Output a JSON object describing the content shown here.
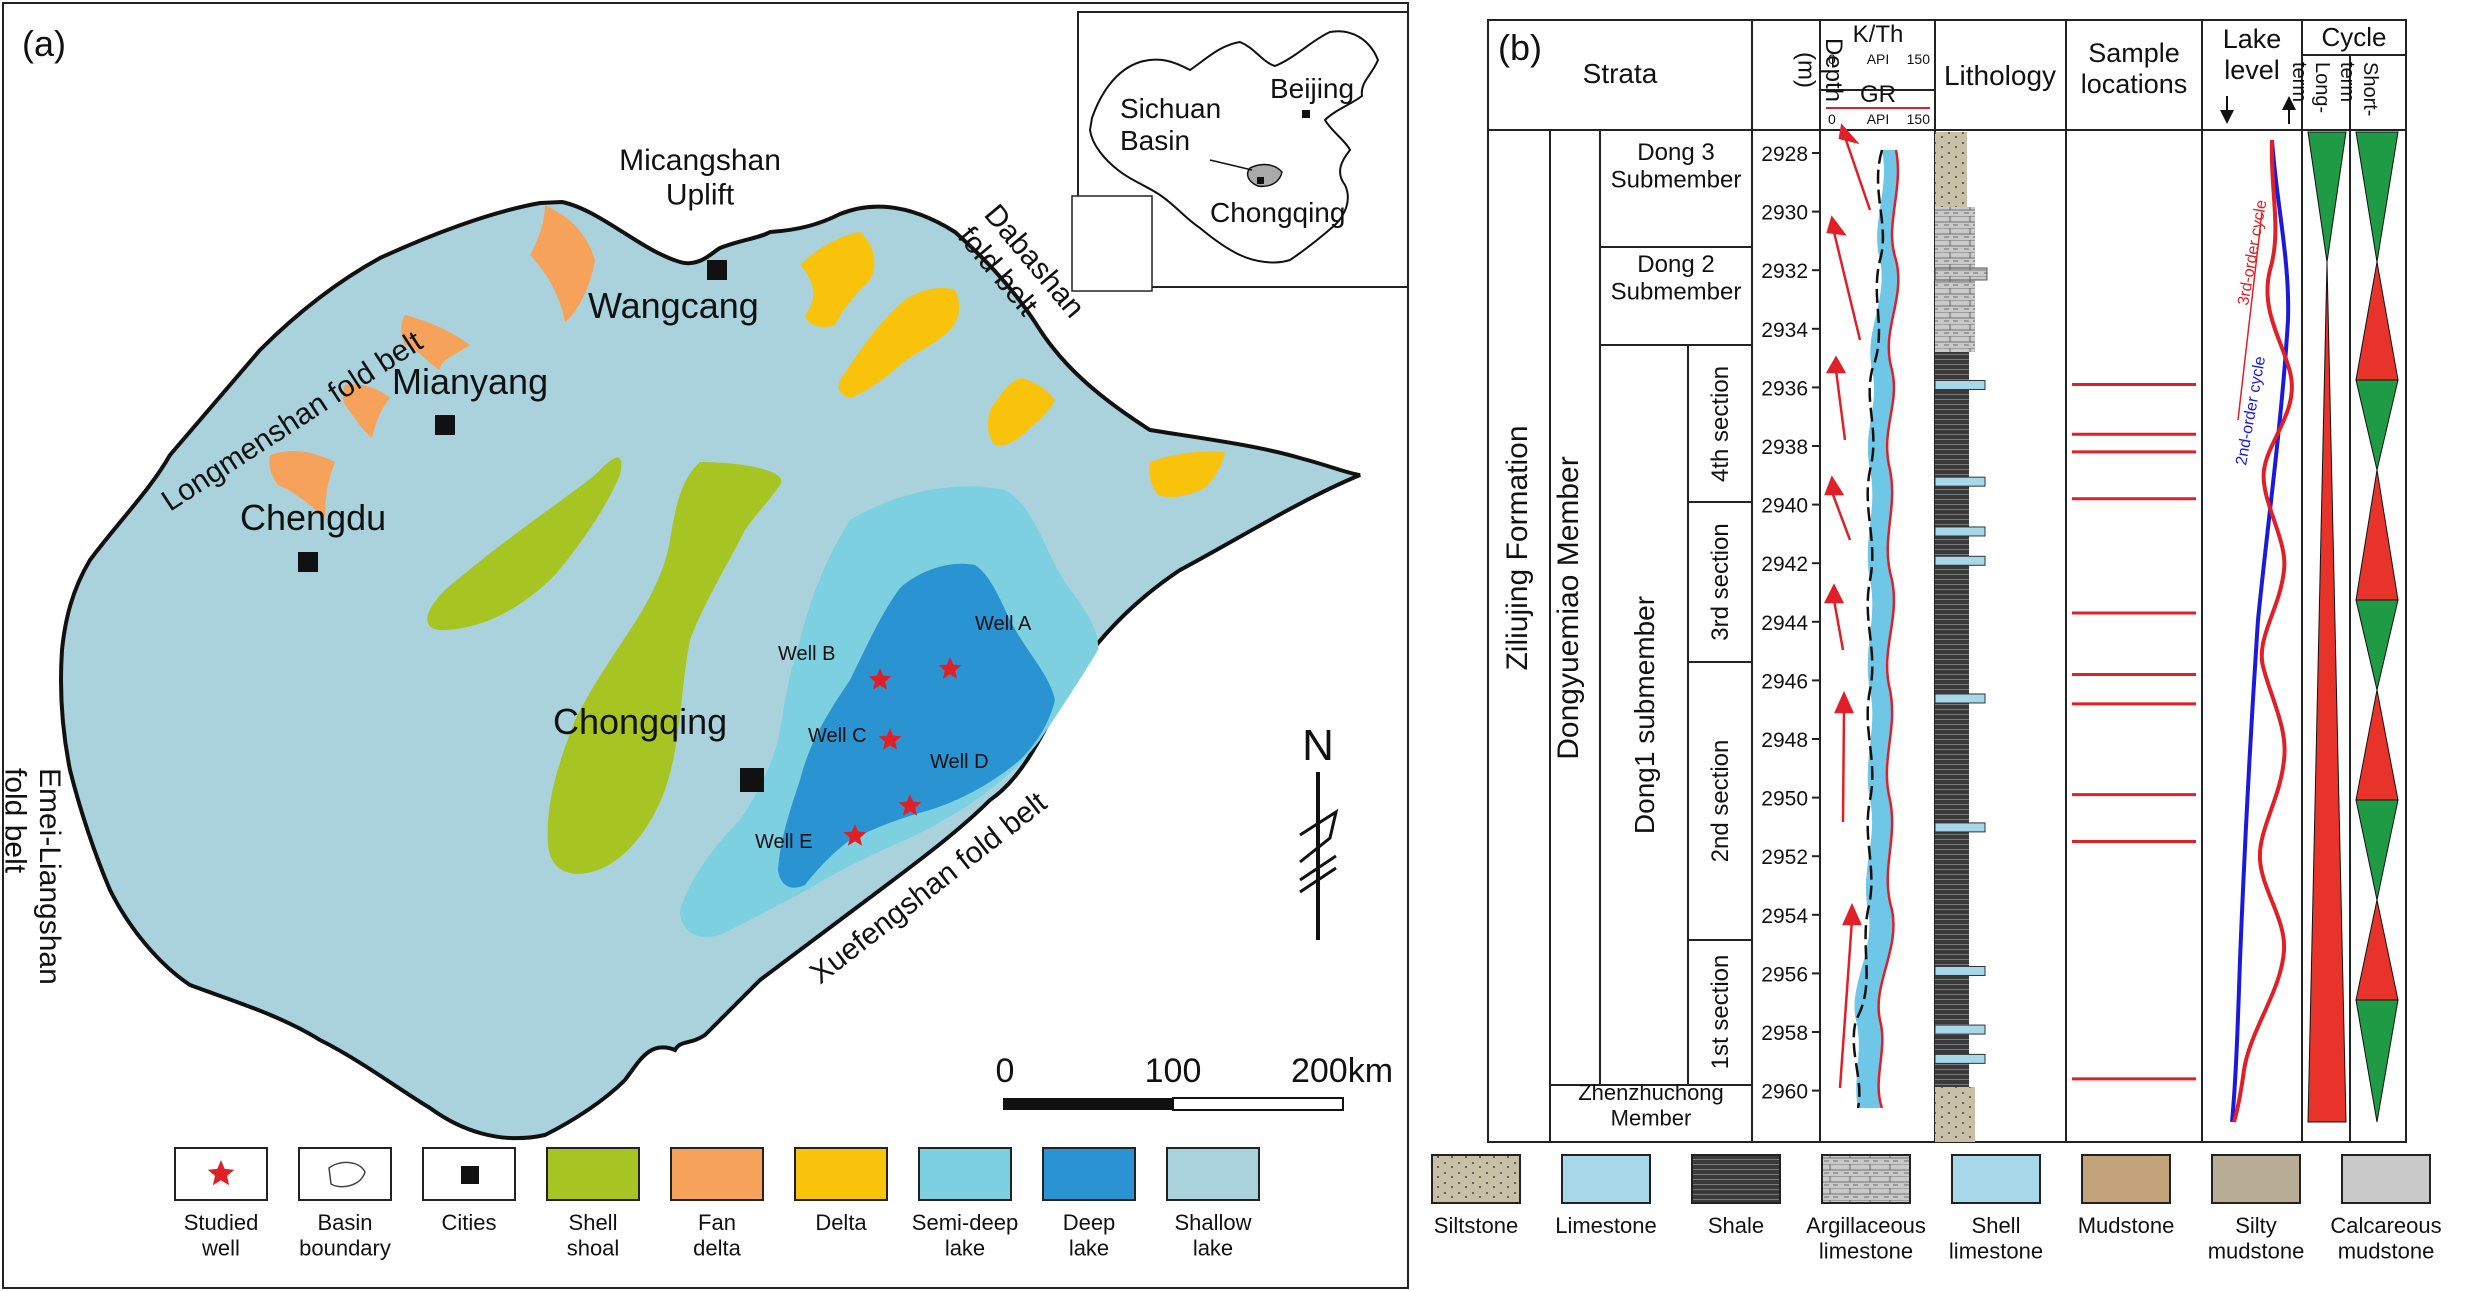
{
  "panel_a": {
    "label": "(a)",
    "places": {
      "micangshan": "Micangshan\nUplift",
      "longmenshan": "Longmenshan fold belt",
      "dabashan": "Dabashan\nfold belt",
      "wangcang": "Wangcang",
      "mianyang": "Mianyang",
      "chengdu": "Chengdu",
      "chongqing": "Chongqing",
      "xuefengshan": "Xuefengshan fold belt",
      "emei": "Emei-Liangshan\nfold belt",
      "north": "N"
    },
    "wells": [
      "Well A",
      "Well B",
      "Well C",
      "Well D",
      "Well E"
    ],
    "inset": {
      "beijing": "Beijing",
      "sichuan": "Sichuan\nBasin",
      "chongqing": "Chongqing"
    },
    "scale": {
      "labels": [
        "0",
        "100",
        "200km"
      ]
    },
    "legend": [
      {
        "label": "Studied\nwell",
        "type": "star",
        "color": "#e11f26"
      },
      {
        "label": "Basin\nboundary",
        "type": "outline",
        "color": "#ffffff"
      },
      {
        "label": "Cities",
        "type": "square",
        "color": "#111111"
      },
      {
        "label": "Shell\nshoal",
        "type": "fill",
        "color": "#a6c523"
      },
      {
        "label": "Fan\ndelta",
        "type": "fill",
        "color": "#f6a25a"
      },
      {
        "label": "Delta",
        "type": "fill",
        "color": "#f9c20b"
      },
      {
        "label": "Semi-deep\nlake",
        "type": "fill",
        "color": "#7dd0df"
      },
      {
        "label": "Deep\nlake",
        "type": "fill",
        "color": "#2a94d2"
      },
      {
        "label": "Shallow\nlake",
        "type": "fill",
        "color": "#a9d2dc"
      }
    ]
  },
  "panel_b": {
    "label": "(b)",
    "headers": {
      "strata": "Strata",
      "depth": "Depth\n(m)",
      "kth": "K/Th",
      "kth_scale": [
        "0",
        "API",
        "150"
      ],
      "gr": "GR",
      "gr_scale": [
        "0",
        "API",
        "150"
      ],
      "lithology": "Lithology",
      "samples": "Sample\nlocations",
      "lake_level": "Lake\nlevel",
      "cycle": "Cycle",
      "long_term": "Long-\nterm",
      "short_term": "Short-\nterm"
    },
    "strata": {
      "formation": "Ziliujing   Formation",
      "member": "Dongyuemiao   Member",
      "dong3": "Dong 3\nSubmember",
      "dong2": "Dong 2\nSubmember",
      "dong1": "Dong1  submember",
      "sec4": "4th section",
      "sec3": "3rd section",
      "sec2": "2nd  section",
      "sec1": "1st section",
      "zhenzhuchong": "Zhenzhuchong\nMember"
    },
    "depth_ticks": [
      2928,
      2930,
      2932,
      2934,
      2936,
      2938,
      2940,
      2942,
      2944,
      2946,
      2948,
      2950,
      2952,
      2954,
      2956,
      2958,
      2960
    ],
    "sample_depths": [
      2935.9,
      2937.6,
      2938.2,
      2939.8,
      2943.7,
      2945.8,
      2946.8,
      2949.9,
      2951.5,
      2959.6
    ],
    "curve_labels": {
      "third_order": "3rd-order cycle",
      "second_order": "2nd-order cycle"
    },
    "lithology_legend": [
      "Siltstone",
      "Limestone",
      "Shale",
      "Argillaceous\nlimestone",
      "Shell\nlimestone",
      "Mudstone",
      "Silty\nmudstone",
      "Calcareous\nmudstone"
    ]
  }
}
